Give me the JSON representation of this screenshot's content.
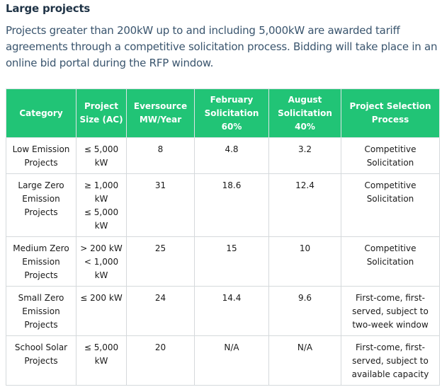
{
  "section": {
    "title": "Large projects",
    "intro": "Projects greater than 200kW up to and including 5,000kW are awarded tariff agreements through a competitive solicitation process. Bidding will take place in an online bid portal during the RFP window."
  },
  "table": {
    "headers": [
      "Category",
      "Project Size (AC)",
      "Eversource MW/Year",
      "February Solicitation 60%",
      "August Solicitation 40%",
      "Project Selection Process"
    ],
    "rows": [
      {
        "category": "Low Emission Projects",
        "size": [
          "≤ 5,000 kW"
        ],
        "mw_year": "8",
        "february": "4.8",
        "august": "3.2",
        "process": "Competitive Solicitation"
      },
      {
        "category": "Large Zero Emission Projects",
        "size": [
          "≥ 1,000 kW",
          "≤ 5,000 kW"
        ],
        "mw_year": "31",
        "february": "18.6",
        "august": "12.4",
        "process": "Competitive Solicitation"
      },
      {
        "category": "Medium Zero Emission Projects",
        "size": [
          "> 200 kW",
          "< 1,000 kW"
        ],
        "mw_year": "25",
        "february": "15",
        "august": "10",
        "process": "Competitive Solicitation"
      },
      {
        "category": "Small Zero Emission Projects",
        "size": [
          "≤ 200 kW"
        ],
        "mw_year": "24",
        "february": "14.4",
        "august": "9.6",
        "process": "First-come, first-served, subject to two-week window"
      },
      {
        "category": "School Solar Projects",
        "size": [
          "≤ 5,000 kW"
        ],
        "mw_year": "20",
        "february": "N/A",
        "august": "N/A",
        "process": "First-come, first-served, subject to available capacity"
      }
    ]
  }
}
